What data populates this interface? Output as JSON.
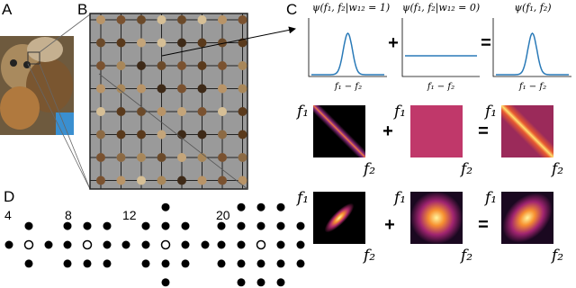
{
  "panels": {
    "a": "A",
    "b": "B",
    "c": "C",
    "d": "D"
  },
  "panel_c": {
    "titles": [
      "ψ(f₁, f₂|w₁₂ = 1)",
      "ψ(f₁, f₂|w₁₂ = 0)",
      "ψ(f₁, f₂)"
    ],
    "plus": "+",
    "equals": "=",
    "x_label": "f₁ − f₂",
    "f1": "f₁",
    "f2": "f₂"
  },
  "panel_d": {
    "neighborhoods": [
      "4",
      "8",
      "12",
      "20"
    ]
  }
}
